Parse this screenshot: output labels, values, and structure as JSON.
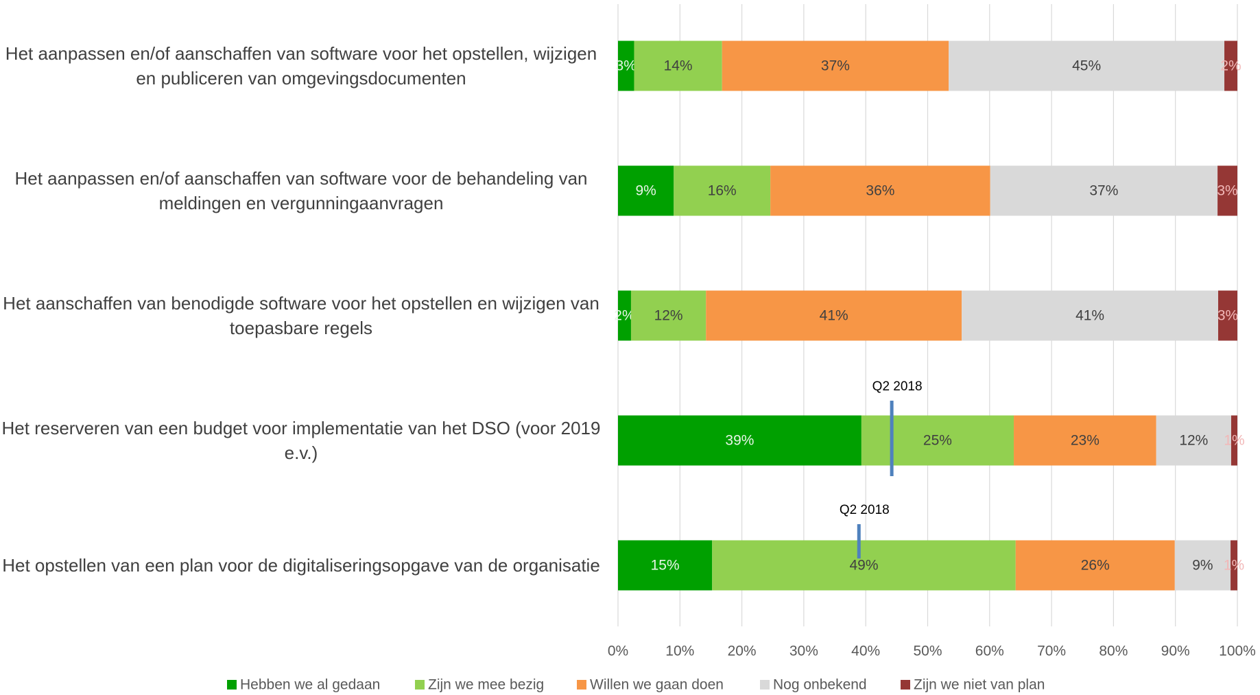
{
  "chart_data": {
    "type": "stacked-bar-horizontal",
    "categories": [
      "Het aanpassen en/of aanschaffen van software voor het opstellen, wijzigen en publiceren van omgevingsdocumenten",
      "Het aanpassen en/of aanschaffen van software voor de behandeling van meldingen en vergunningaanvragen",
      "Het aanschaffen van benodigde software voor het opstellen en wijzigen van toepasbare regels",
      "Het reserveren van een budget voor implementatie van het DSO (voor 2019 e.v.)",
      "Het opstellen van een plan voor de digitaliseringsopgave van de organisatie"
    ],
    "series": [
      {
        "name": "Hebben we al gedaan",
        "color": "#00a000",
        "label_color": "#e8f5e8",
        "values": [
          2.6,
          9.0,
          2.1,
          39.3,
          15.2
        ],
        "value_labels": [
          "3%",
          "9%",
          "2%",
          "39%",
          "15%"
        ]
      },
      {
        "name": "Zijn we mee bezig",
        "color": "#92d050",
        "label_color": "#404040",
        "values": [
          14.2,
          15.6,
          12.1,
          24.6,
          49.0
        ],
        "value_labels": [
          "14%",
          "16%",
          "12%",
          "25%",
          "49%"
        ]
      },
      {
        "name": "Willen we gaan doen",
        "color": "#f79646",
        "label_color": "#404040",
        "values": [
          36.6,
          35.5,
          41.3,
          23.0,
          25.7
        ],
        "value_labels": [
          "37%",
          "36%",
          "41%",
          "23%",
          "26%"
        ]
      },
      {
        "name": "Nog onbekend",
        "color": "#d9d9d9",
        "label_color": "#404040",
        "values": [
          44.5,
          36.7,
          41.4,
          12.1,
          9.0
        ],
        "value_labels": [
          "45%",
          "37%",
          "41%",
          "12%",
          "9%"
        ]
      },
      {
        "name": "Zijn we niet van plan",
        "color": "#953735",
        "label_color": "#f2b8b8",
        "values": [
          2.1,
          3.2,
          3.1,
          1.0,
          1.1
        ],
        "value_labels": [
          "2%",
          "3%",
          "3%",
          "1%",
          "1%"
        ]
      }
    ],
    "markers": [
      {
        "category": 3,
        "label": "Q2 2018",
        "value": 44.2,
        "color": "#4f81bd"
      },
      {
        "category": 4,
        "label": "Q2 2018",
        "value": 38.9,
        "color": "#4f81bd"
      }
    ],
    "xlim": [
      0,
      100
    ],
    "xticks": [
      {
        "value": 0,
        "label": "0%"
      },
      {
        "value": 10,
        "label": "10%"
      },
      {
        "value": 20,
        "label": "20%"
      },
      {
        "value": 30,
        "label": "30%"
      },
      {
        "value": 40,
        "label": "40%"
      },
      {
        "value": 50,
        "label": "50%"
      },
      {
        "value": 60,
        "label": "60%"
      },
      {
        "value": 70,
        "label": "70%"
      },
      {
        "value": 80,
        "label": "80%"
      },
      {
        "value": 90,
        "label": "90%"
      },
      {
        "value": 100,
        "label": "100%"
      }
    ],
    "grid": true,
    "legend": "bottom"
  }
}
